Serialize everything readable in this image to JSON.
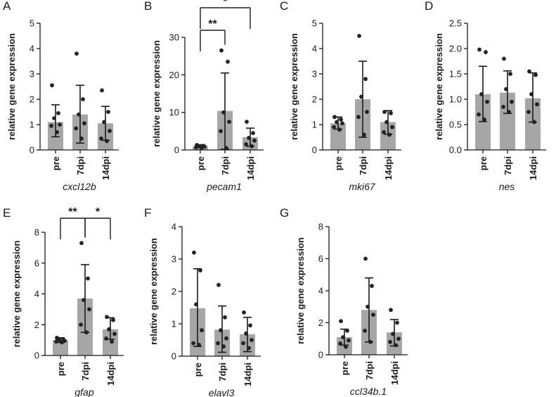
{
  "colors": {
    "bar": "#a6a6a6",
    "point": "#222222",
    "axis": "#1a1a1a"
  },
  "chart_data": [
    {
      "type": "bar",
      "panel_label": "A",
      "gene": "cxcl12b",
      "ylabel": "relative gene expression",
      "ylim": [
        0,
        5
      ],
      "yticks": [
        0,
        1,
        2,
        3,
        4,
        5
      ],
      "categories": [
        "pre",
        "7dpi",
        "14dpi"
      ],
      "values": [
        1.1,
        1.4,
        1.05
      ],
      "sd": [
        [
          0.52,
          1.78
        ],
        [
          0.27,
          2.55
        ],
        [
          0.38,
          1.72
        ]
      ],
      "points": [
        [
          2.55,
          1.45,
          1.25,
          1.0,
          0.95,
          0.7
        ],
        [
          3.8,
          2.0,
          1.4,
          1.05,
          0.85,
          0.45
        ],
        [
          2.35,
          1.5,
          1.1,
          0.75,
          0.45,
          0.35
        ]
      ],
      "significance": []
    },
    {
      "type": "bar",
      "panel_label": "B",
      "gene": "pecam1",
      "ylabel": "relative gene expression",
      "ylim": [
        0,
        30
      ],
      "yticks": [
        0,
        10,
        20,
        30
      ],
      "categories": [
        "pre",
        "7dpi",
        "14dpi"
      ],
      "values": [
        1.0,
        10.4,
        3.4
      ],
      "sd": [
        [
          0.6,
          1.4
        ],
        [
          0.2,
          20.5
        ],
        [
          1.0,
          5.8
        ]
      ],
      "points": [
        [
          1.3,
          1.1,
          1.0,
          0.9,
          0.7,
          0.6
        ],
        [
          26.5,
          23.5,
          10.0,
          7.5,
          5.0,
          0.5
        ],
        [
          7.5,
          4.5,
          3.2,
          2.5,
          1.5,
          1.0
        ]
      ],
      "significance": [
        {
          "from": 0,
          "to": 1,
          "label": "**",
          "level": 0
        },
        {
          "from": 0,
          "to": 2,
          "label": "*",
          "level": 1
        }
      ]
    },
    {
      "type": "bar",
      "panel_label": "C",
      "gene": "mki67",
      "ylabel": "relative gene expression",
      "ylim": [
        0,
        5
      ],
      "yticks": [
        0,
        1,
        2,
        3,
        4,
        5
      ],
      "categories": [
        "pre",
        "7dpi",
        "14dpi"
      ],
      "values": [
        1.05,
        2.0,
        1.1
      ],
      "sd": [
        [
          0.82,
          1.3
        ],
        [
          0.5,
          3.5
        ],
        [
          0.62,
          1.55
        ]
      ],
      "points": [
        [
          1.3,
          1.2,
          1.1,
          1.05,
          0.9,
          0.8
        ],
        [
          4.5,
          2.8,
          2.1,
          1.5,
          1.3,
          0.6
        ],
        [
          1.5,
          1.45,
          1.1,
          0.9,
          0.7,
          0.6
        ]
      ],
      "significance": []
    },
    {
      "type": "bar",
      "panel_label": "D",
      "gene": "nes",
      "ylabel": "relative gene expression",
      "ylim": [
        0,
        2.5
      ],
      "yticks": [
        "0.0",
        "0.5",
        "1.0",
        "1.5",
        "2.0",
        "2.5"
      ],
      "categories": [
        "pre",
        "7dpi",
        "14dpi"
      ],
      "values": [
        1.1,
        1.13,
        1.02
      ],
      "sd": [
        [
          0.56,
          1.65
        ],
        [
          0.72,
          1.56
        ],
        [
          0.55,
          1.52
        ]
      ],
      "points": [
        [
          1.98,
          1.93,
          1.1,
          0.95,
          0.7,
          0.6
        ],
        [
          1.8,
          1.5,
          1.2,
          0.95,
          0.85,
          0.75
        ],
        [
          1.55,
          1.48,
          1.1,
          0.9,
          0.75,
          0.55
        ]
      ],
      "significance": []
    },
    {
      "type": "bar",
      "panel_label": "E",
      "gene": "gfap",
      "ylabel": "relative gene expression",
      "ylim": [
        0,
        8
      ],
      "yticks": [
        0,
        2,
        4,
        6,
        8
      ],
      "categories": [
        "pre",
        "7dpi",
        "14dpi"
      ],
      "values": [
        1.0,
        3.7,
        1.7
      ],
      "sd": [
        [
          0.85,
          1.15
        ],
        [
          1.5,
          5.9
        ],
        [
          1.05,
          2.45
        ]
      ],
      "points": [
        [
          1.15,
          1.05,
          1.0,
          0.95,
          0.9,
          0.85
        ],
        [
          7.3,
          5.0,
          3.6,
          3.0,
          2.0,
          1.5
        ],
        [
          2.5,
          2.3,
          1.7,
          1.4,
          1.1,
          0.9
        ]
      ],
      "significance": [
        {
          "from": 0,
          "to": 1,
          "label": "**",
          "level": 0
        },
        {
          "from": 1,
          "to": 2,
          "label": "*",
          "level": 0
        }
      ]
    },
    {
      "type": "bar",
      "panel_label": "F",
      "gene": "elavl3",
      "ylabel": "relative gene expression",
      "ylim": [
        0,
        4
      ],
      "yticks": [
        0,
        1,
        2,
        3,
        4
      ],
      "categories": [
        "pre",
        "7dpi",
        "14dpi"
      ],
      "values": [
        1.48,
        0.82,
        0.68
      ],
      "sd": [
        [
          0.3,
          2.7
        ],
        [
          0.12,
          1.55
        ],
        [
          0.14,
          1.2
        ]
      ],
      "points": [
        [
          3.2,
          2.65,
          1.6,
          0.8,
          0.4,
          0.35
        ],
        [
          2.2,
          1.2,
          0.8,
          0.55,
          0.4,
          0.3
        ],
        [
          1.35,
          0.95,
          0.7,
          0.5,
          0.4,
          0.25
        ]
      ],
      "significance": []
    },
    {
      "type": "bar",
      "panel_label": "G",
      "gene": "ccl34b.1",
      "ylabel": "relative gene expression",
      "ylim": [
        0,
        8
      ],
      "yticks": [
        0,
        2,
        4,
        6,
        8
      ],
      "categories": [
        "pre",
        "7dpi",
        "14dpi"
      ],
      "values": [
        1.1,
        2.8,
        1.4
      ],
      "sd": [
        [
          0.6,
          1.6
        ],
        [
          0.8,
          4.8
        ],
        [
          0.55,
          2.2
        ]
      ],
      "points": [
        [
          2.1,
          1.5,
          1.1,
          0.9,
          0.7,
          0.5
        ],
        [
          6.0,
          4.3,
          3.0,
          2.5,
          1.5,
          0.8
        ],
        [
          2.8,
          2.0,
          1.3,
          1.0,
          0.8,
          0.6
        ]
      ],
      "significance": []
    }
  ]
}
